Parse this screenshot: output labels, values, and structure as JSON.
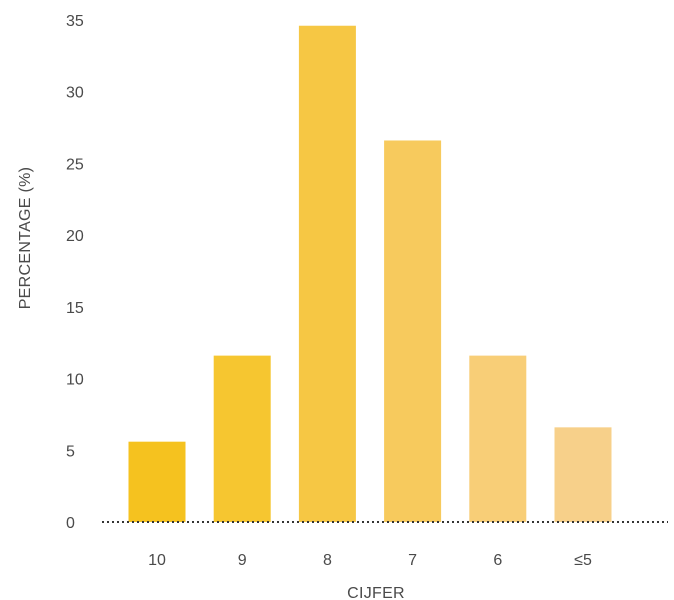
{
  "chart_data": {
    "type": "bar",
    "categories": [
      "10",
      "9",
      "8",
      "7",
      "6",
      "≤5"
    ],
    "values": [
      5.6,
      11.6,
      34.6,
      26.6,
      11.6,
      6.6
    ],
    "title": "",
    "xlabel": "CIJFER",
    "ylabel": "PERCENTAGE (%)",
    "ylim": [
      0,
      35
    ],
    "yticks": [
      0,
      5,
      10,
      15,
      20,
      25,
      30,
      35
    ],
    "grid": false,
    "baseline_style": "dotted",
    "bar_colors": [
      "#F5C21F",
      "#F6C630",
      "#F6C744",
      "#F7CA5D",
      "#F8CE77",
      "#F7D08A"
    ]
  }
}
